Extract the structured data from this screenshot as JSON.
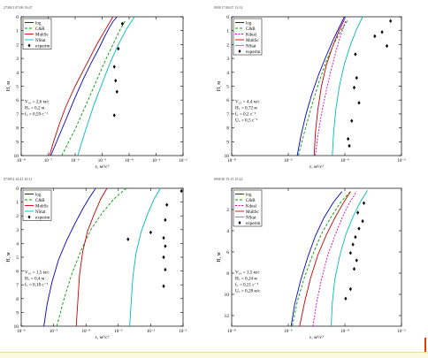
{
  "colors": {
    "log": "#0000cc",
    "c_and_b": "#009900",
    "kdeal": "#cc00cc",
    "multsc": "#cc0000",
    "nstat": "#00bbbb",
    "experim": "#000000"
  },
  "chart_data": [
    {
      "type": "line",
      "header": "27/08/1 07:08 19:47",
      "xlabel": "ε, м²/с³",
      "ylabel": "H, м",
      "xscale": "log",
      "xticks": [
        "10⁻⁸",
        "10⁻⁷",
        "10⁻⁶",
        "10⁻⁵",
        "10⁻⁴",
        "10⁻³",
        "10⁻²"
      ],
      "xlim": [
        -8,
        -2
      ],
      "ylim": [
        0,
        10
      ],
      "yticks": [
        "0",
        "1",
        "2",
        "3",
        "4",
        "5",
        "6",
        "7",
        "8",
        "9",
        "10"
      ],
      "legend_position": "top-left",
      "legend": [
        "log",
        "C&B",
        "MultSc",
        "NStat",
        "experim"
      ],
      "annotation": [
        "V₁₀ = 2,6 м/с",
        "H꜀ = 0,2 м",
        "f꜀ = 0,59 с⁻¹"
      ],
      "series": [
        {
          "name": "log",
          "key": "log",
          "x": [
            -6.9,
            -6.6,
            -6.3,
            -6.0,
            -5.7,
            -5.4,
            -5.1,
            -4.9,
            -4.75,
            -4.6,
            -4.45
          ],
          "y": [
            10,
            8.6,
            7.2,
            5.8,
            4.5,
            3.3,
            2.2,
            1.4,
            0.85,
            0.35,
            0
          ]
        },
        {
          "name": "C&B",
          "key": "c_and_b",
          "x": [
            -6.5,
            -6.0,
            -5.5,
            -5.1,
            -4.8,
            -4.55,
            -4.35,
            -4.15
          ],
          "y": [
            10,
            8.1,
            5.9,
            4.1,
            2.8,
            1.8,
            1.0,
            0.3
          ]
        },
        {
          "name": "MultSc",
          "key": "multsc",
          "x": [
            -6.95,
            -6.8,
            -6.6,
            -6.35,
            -6.0,
            -5.6,
            -5.2,
            -4.9,
            -4.6
          ],
          "y": [
            10,
            9.0,
            7.8,
            6.5,
            5.0,
            3.5,
            2.0,
            1.0,
            0
          ]
        },
        {
          "name": "NStat",
          "key": "nstat",
          "x": [
            -5.9,
            -5.75,
            -5.55,
            -5.3,
            -5.0,
            -4.7,
            -4.4,
            -4.1,
            -3.8
          ],
          "y": [
            10,
            9.0,
            7.8,
            6.3,
            4.8,
            3.3,
            2.0,
            0.9,
            0
          ]
        },
        {
          "name": "experim",
          "key": "experim",
          "x": [
            -4.25,
            -4.4,
            -4.55,
            -4.5,
            -4.45,
            -4.55
          ],
          "y": [
            0.5,
            2.3,
            3.6,
            4.6,
            5.4,
            7.1
          ],
          "marker": "diamond"
        }
      ]
    },
    {
      "type": "line",
      "header": "09/8/17 00:07 13:31",
      "xlabel": "ε, м²/с³",
      "ylabel": "H, м",
      "xscale": "log",
      "xticks": [
        "10⁻⁸",
        "10⁻⁶",
        "10⁻⁴",
        "10⁻²"
      ],
      "xlim": [
        -8,
        -1
      ],
      "ylim": [
        0,
        10
      ],
      "yticks": [
        "0",
        "1",
        "2",
        "3",
        "4",
        "5",
        "6",
        "7",
        "8",
        "9",
        "10"
      ],
      "legend_position": "top-left",
      "legend": [
        "log",
        "C&B",
        "Kdeal",
        "MultSc",
        "NStat",
        "experim"
      ],
      "annotation": [
        "V₁₀ = 4,4 м/с",
        "H꜀ = 0,72 м",
        "f꜀ = 0,2 с⁻¹",
        "U꜀ = 0,5 с⁻¹"
      ],
      "series": [
        {
          "name": "log",
          "key": "log",
          "x": [
            -5.3,
            -5.15,
            -4.95,
            -4.7,
            -4.4,
            -4.1,
            -3.8,
            -3.55,
            -3.35
          ],
          "y": [
            10,
            8.6,
            7.1,
            5.6,
            4.1,
            2.8,
            1.6,
            0.7,
            0
          ]
        },
        {
          "name": "C&B",
          "key": "c_and_b",
          "x": [
            -5.25,
            -5.0,
            -4.7,
            -4.4,
            -4.1,
            -3.8,
            -3.5,
            -3.2
          ],
          "y": [
            10,
            8.3,
            6.4,
            4.7,
            3.2,
            2.0,
            1.0,
            0.2
          ]
        },
        {
          "name": "Kdeal",
          "key": "kdeal",
          "x": [
            -4.55,
            -4.45,
            -4.3,
            -4.1,
            -3.9,
            -3.7,
            -3.5,
            -3.3
          ],
          "y": [
            10,
            8.6,
            7.0,
            5.3,
            3.8,
            2.5,
            1.3,
            0.3
          ]
        },
        {
          "name": "MultSc",
          "key": "multsc",
          "x": [
            -4.6,
            -4.55,
            -4.45,
            -4.3,
            -4.1,
            -3.85,
            -3.6,
            -3.35
          ],
          "y": [
            10,
            8.4,
            6.7,
            5.0,
            3.5,
            2.2,
            1.1,
            0.2
          ]
        },
        {
          "name": "NStat",
          "key": "nstat",
          "x": [
            -3.85,
            -3.8,
            -3.7,
            -3.55,
            -3.35,
            -3.1,
            -2.85,
            -2.6
          ],
          "y": [
            10,
            8.4,
            6.6,
            4.9,
            3.4,
            2.0,
            0.9,
            0
          ]
        },
        {
          "name": "experim",
          "key": "experim",
          "x": [
            -1.45,
            -1.8,
            -2.1,
            -1.6,
            -2.9,
            -2.85,
            -2.95,
            -2.75,
            -3.05,
            -3.2,
            -3.15
          ],
          "y": [
            0.3,
            1.1,
            1.4,
            2.1,
            2.7,
            4.4,
            5.1,
            6.2,
            7.5,
            8.8,
            9.3
          ],
          "marker": "diamond"
        }
      ]
    },
    {
      "type": "line",
      "header": "07/09/2 14:41 10:11",
      "xlabel": "ε, м²/с³",
      "ylabel": "H, м",
      "xscale": "log",
      "xticks": [
        "10⁻⁶",
        "10⁻⁵",
        "10⁻⁴",
        "10⁻³",
        "10⁻²",
        "10⁻¹"
      ],
      "xlim": [
        -6,
        -1
      ],
      "ylim": [
        0,
        10
      ],
      "yticks": [
        "0",
        "1",
        "2",
        "3",
        "4",
        "5",
        "6",
        "7",
        "8",
        "9",
        "10"
      ],
      "legend_position": "top-left",
      "legend": [
        "log",
        "C&B",
        "MultSc",
        "NStat",
        "experim"
      ],
      "annotation": [
        "V₁₀ = 1,5 м/с",
        "H꜀ = 0,4 м",
        "f꜀ = 0,18 с⁻¹"
      ],
      "series": [
        {
          "name": "log",
          "key": "log",
          "x": [
            -5.3,
            -5.2,
            -5.05,
            -4.85,
            -4.6,
            -4.35,
            -4.1,
            -3.9,
            -3.7
          ],
          "y": [
            10,
            8.4,
            6.8,
            5.2,
            3.8,
            2.6,
            1.5,
            0.7,
            0
          ]
        },
        {
          "name": "C&B",
          "key": "c_and_b",
          "x": [
            -4.9,
            -4.7,
            -4.45,
            -4.15,
            -3.85,
            -3.5,
            -3.15,
            -2.75
          ],
          "y": [
            10,
            8.2,
            6.3,
            4.5,
            3.0,
            1.8,
            0.8,
            0
          ]
        },
        {
          "name": "MultSc",
          "key": "multsc",
          "x": [
            -4.3,
            -4.25,
            -4.2,
            -4.1,
            -3.95,
            -3.75,
            -3.55,
            -3.35
          ],
          "y": [
            10,
            8.2,
            6.3,
            4.6,
            3.1,
            1.9,
            0.8,
            0
          ]
        },
        {
          "name": "NStat",
          "key": "nstat",
          "x": [
            -2.65,
            -2.6,
            -2.55,
            -2.45,
            -2.3,
            -2.1,
            -1.9,
            -1.7
          ],
          "y": [
            10,
            8.2,
            6.4,
            4.7,
            3.2,
            1.9,
            0.8,
            0
          ]
        },
        {
          "name": "experim",
          "key": "experim",
          "x": [
            -1.05,
            -1.5,
            -1.55,
            -1.6,
            -1.55,
            -1.6,
            -1.55,
            -1.6,
            -2.0,
            -2.7
          ],
          "y": [
            0.2,
            1.2,
            2.3,
            3.6,
            4.2,
            5.0,
            5.9,
            7.1,
            3.2,
            3.7
          ],
          "marker": "diamond"
        }
      ]
    },
    {
      "type": "line",
      "header": "09/8/20 15:15 15:22",
      "xlabel": "ε, м²/с³",
      "ylabel": "H, м",
      "xscale": "log",
      "xticks": [
        "10⁻⁸",
        "10⁻⁶",
        "10⁻⁴",
        "10⁻²"
      ],
      "xlim": [
        -8,
        -1
      ],
      "ylim": [
        0,
        13
      ],
      "yticks": [
        "2",
        "4",
        "6",
        "8",
        "10",
        "12"
      ],
      "legend_position": "top-left",
      "legend": [
        "log",
        "C&B",
        "Kdeal",
        "MultSc",
        "NStat",
        "experim"
      ],
      "annotation": [
        "V₁₀ = 3,5 м/с",
        "H꜀ = 0,24 м",
        "f꜀ = 0,21 с⁻¹",
        "U꜀ = 0,28 м/с"
      ],
      "series": [
        {
          "name": "log",
          "key": "log",
          "x": [
            -5.55,
            -5.4,
            -5.15,
            -4.85,
            -4.55,
            -4.2,
            -3.8,
            -3.45
          ],
          "y": [
            13,
            10.9,
            8.6,
            6.4,
            4.5,
            2.8,
            1.3,
            0.3
          ]
        },
        {
          "name": "C&B",
          "key": "c_and_b",
          "x": [
            -5.5,
            -5.3,
            -5.0,
            -4.65,
            -4.3,
            -3.9,
            -3.5,
            -3.1
          ],
          "y": [
            13,
            10.7,
            8.4,
            6.2,
            4.3,
            2.7,
            1.3,
            0.3
          ]
        },
        {
          "name": "Kdeal",
          "key": "kdeal",
          "x": [
            -4.65,
            -4.5,
            -4.3,
            -4.05,
            -3.75,
            -3.45,
            -3.15,
            -2.85
          ],
          "y": [
            13,
            10.8,
            8.6,
            6.4,
            4.5,
            2.8,
            1.4,
            0.3
          ]
        },
        {
          "name": "MultSc",
          "key": "multsc",
          "x": [
            -5.2,
            -5.0,
            -4.75,
            -4.45,
            -4.1,
            -3.75,
            -3.4,
            -3.1
          ],
          "y": [
            13,
            10.8,
            8.5,
            6.3,
            4.4,
            2.8,
            1.4,
            0.3
          ]
        },
        {
          "name": "NStat",
          "key": "nstat",
          "x": [
            -3.9,
            -3.85,
            -3.75,
            -3.55,
            -3.3,
            -3.0,
            -2.7,
            -2.4
          ],
          "y": [
            13,
            10.8,
            8.6,
            6.4,
            4.4,
            2.7,
            1.3,
            0.2
          ]
        },
        {
          "name": "experim",
          "key": "experim",
          "x": [
            -2.55,
            -2.8,
            -2.6,
            -2.75,
            -2.9,
            -3.0,
            -3.1,
            -2.85,
            -2.95,
            -3.1,
            -3.3
          ],
          "y": [
            1.4,
            2.3,
            3.1,
            3.8,
            4.6,
            5.3,
            6.1,
            6.8,
            7.6,
            9.5,
            10.4
          ],
          "marker": "diamond"
        }
      ]
    }
  ]
}
